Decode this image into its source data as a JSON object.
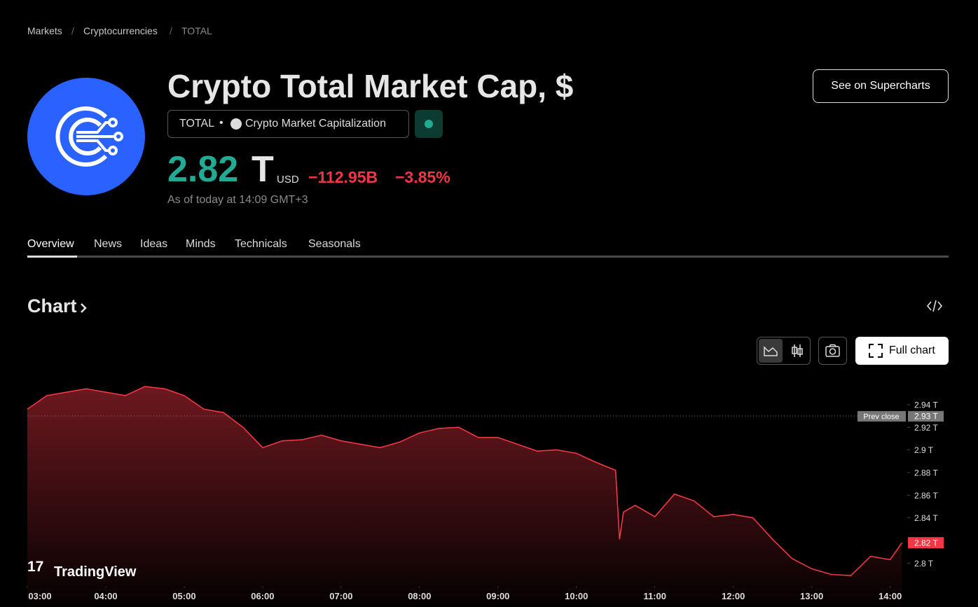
{
  "breadcrumbs": [
    "Markets",
    "Cryptocurrencies",
    "TOTAL"
  ],
  "header": {
    "title": "Crypto Total Market Cap, $",
    "symbol": "TOTAL",
    "description": "Crypto Market Capitalization",
    "supercharts_button": "See on Supercharts"
  },
  "price": {
    "value": "2.82",
    "unit": "T",
    "currency": "USD",
    "change": "−112.95B",
    "change_percent": "−3.85%",
    "timestamp": "As of today at 14:09 GMT+3"
  },
  "tabs": [
    "Overview",
    "News",
    "Ideas",
    "Minds",
    "Technicals",
    "Seasonals"
  ],
  "section_title": "Chart",
  "full_chart_button": "Full chart",
  "watermark": "TradingView",
  "chart_data": {
    "type": "area",
    "color": "#f23645",
    "x": [
      "03:00",
      "03:15",
      "03:30",
      "03:45",
      "04:00",
      "04:15",
      "04:30",
      "04:45",
      "05:00",
      "05:15",
      "05:30",
      "05:45",
      "06:00",
      "06:15",
      "06:30",
      "06:45",
      "07:00",
      "07:15",
      "07:30",
      "07:45",
      "08:00",
      "08:15",
      "08:30",
      "08:45",
      "09:00",
      "09:15",
      "09:30",
      "09:45",
      "10:00",
      "10:15",
      "10:30",
      "10:33",
      "10:36",
      "10:45",
      "11:00",
      "11:15",
      "11:30",
      "11:45",
      "12:00",
      "12:15",
      "12:30",
      "12:45",
      "13:00",
      "13:15",
      "13:30",
      "13:45",
      "14:00",
      "14:09"
    ],
    "values": [
      2.936,
      2.948,
      2.951,
      2.954,
      2.951,
      2.948,
      2.956,
      2.954,
      2.948,
      2.936,
      2.933,
      2.92,
      2.902,
      2.908,
      2.909,
      2.913,
      2.908,
      2.905,
      2.902,
      2.907,
      2.915,
      2.919,
      2.92,
      2.911,
      2.911,
      2.905,
      2.899,
      2.9,
      2.897,
      2.889,
      2.882,
      2.821,
      2.845,
      2.851,
      2.841,
      2.861,
      2.855,
      2.841,
      2.843,
      2.84,
      2.821,
      2.804,
      2.795,
      2.79,
      2.789,
      2.806,
      2.803,
      2.818
    ],
    "xlim": [
      "03:00",
      "14:12"
    ],
    "ylim": [
      2.781,
      2.9604
    ],
    "xticks": [
      "03:00",
      "04:00",
      "05:00",
      "06:00",
      "07:00",
      "08:00",
      "09:00",
      "10:00",
      "11:00",
      "12:00",
      "13:00",
      "14:00"
    ],
    "yticks": [
      {
        "value": 2.8,
        "label": "2.8 T"
      },
      {
        "value": 2.82,
        "label": "2.82 T"
      },
      {
        "value": 2.84,
        "label": "2.84 T"
      },
      {
        "value": 2.86,
        "label": "2.86 T"
      },
      {
        "value": 2.88,
        "label": "2.88 T"
      },
      {
        "value": 2.9,
        "label": "2.9 T"
      },
      {
        "value": 2.92,
        "label": "2.92 T"
      },
      {
        "value": 2.94,
        "label": "2.94 T"
      }
    ],
    "prev_close": {
      "label": "Prev close",
      "value": 2.93,
      "value_label": "2.93 T"
    },
    "last_value_label": "2.82 T"
  }
}
